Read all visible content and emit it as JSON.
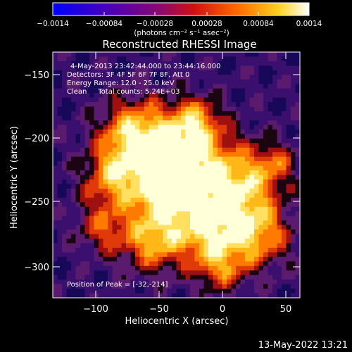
{
  "colorbar": {
    "ticks": [
      "−0.0014",
      "−0.00084",
      "−0.00028",
      "0.00028",
      "0.00084",
      "0.0014"
    ],
    "unit": "(photons cm⁻² s⁻¹ asec⁻²)"
  },
  "plot": {
    "title": "Reconstructed RHESSI Image",
    "xlabel": "Heliocentric X (arcsec)",
    "ylabel": "Heliocentric Y (arcsec)",
    "xticks": [
      "−100",
      "−50",
      "0",
      "50"
    ],
    "yticks": [
      "−150",
      "−200",
      "−250",
      "−300"
    ]
  },
  "info": {
    "time": "4-May-2013 23:42:44.000 to 23:44:16.000",
    "detectors": "Detectors: 3F 4F 5F 6F 7F 8F, Att 0",
    "energy": "Energy Range: 12.0 - 25.0 keV",
    "clean": "Clean     Total counts: 5.24E+03",
    "peak": "Position of Peak = [-32,-214]"
  },
  "footer": {
    "date": "13-May-2022 13:21"
  },
  "colors": {
    "background": "#000000",
    "text": "#ffffff"
  }
}
